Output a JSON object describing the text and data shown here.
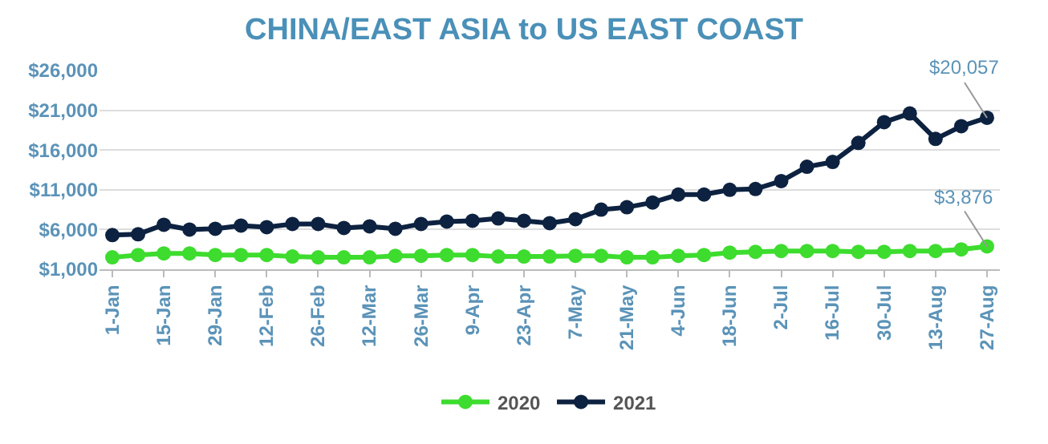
{
  "chart_data": {
    "type": "line",
    "title": "CHINA/EAST ASIA to US EAST COAST",
    "categories": [
      "1-Jan",
      null,
      "15-Jan",
      null,
      "29-Jan",
      null,
      "12-Feb",
      null,
      "26-Feb",
      null,
      "12-Mar",
      null,
      "26-Mar",
      null,
      "9-Apr",
      null,
      "23-Apr",
      null,
      "7-May",
      null,
      "21-May",
      null,
      "4-Jun",
      null,
      "18-Jun",
      null,
      "2-Jul",
      null,
      "16-Jul",
      null,
      "30-Jul",
      null,
      "13-Aug",
      null,
      "27-Aug"
    ],
    "series": [
      {
        "name": "2020",
        "color": "#3ddc2e",
        "values": [
          2500,
          2800,
          3000,
          3000,
          2800,
          2800,
          2800,
          2600,
          2500,
          2500,
          2500,
          2700,
          2700,
          2800,
          2800,
          2600,
          2600,
          2600,
          2700,
          2700,
          2500,
          2500,
          2700,
          2800,
          3100,
          3200,
          3300,
          3300,
          3300,
          3200,
          3200,
          3300,
          3300,
          3500,
          3876
        ],
        "value_labels": [
          null,
          null,
          null,
          null,
          null,
          null,
          null,
          null,
          null,
          null,
          null,
          null,
          null,
          null,
          null,
          null,
          null,
          null,
          null,
          null,
          null,
          null,
          null,
          null,
          null,
          null,
          null,
          null,
          null,
          null,
          null,
          null,
          null,
          null,
          "$3,876"
        ]
      },
      {
        "name": "2021",
        "color": "#0d2240",
        "values": [
          5300,
          5400,
          6600,
          6000,
          6100,
          6500,
          6300,
          6700,
          6700,
          6200,
          6400,
          6100,
          6700,
          7000,
          7100,
          7400,
          7100,
          6800,
          7300,
          8500,
          8800,
          9400,
          10400,
          10400,
          11000,
          11100,
          12100,
          13900,
          14500,
          16900,
          19500,
          20600,
          17400,
          19000,
          20057
        ],
        "value_labels": [
          null,
          null,
          null,
          null,
          null,
          null,
          null,
          null,
          null,
          null,
          null,
          null,
          null,
          null,
          null,
          null,
          null,
          null,
          null,
          null,
          null,
          null,
          null,
          null,
          null,
          null,
          null,
          null,
          null,
          null,
          null,
          null,
          null,
          null,
          "$20,057"
        ]
      }
    ],
    "ylim": [
      1000,
      26000
    ],
    "yticks": [
      {
        "value": 1000,
        "label": "$1,000"
      },
      {
        "value": 6000,
        "label": "$6,000"
      },
      {
        "value": 11000,
        "label": "$11,000"
      },
      {
        "value": 16000,
        "label": "$16,000"
      },
      {
        "value": 21000,
        "label": "$21,000"
      },
      {
        "value": 26000,
        "label": "$26,000"
      }
    ],
    "grid": "y",
    "legend": "bottom",
    "marker": "circle",
    "line_style": "solid"
  }
}
